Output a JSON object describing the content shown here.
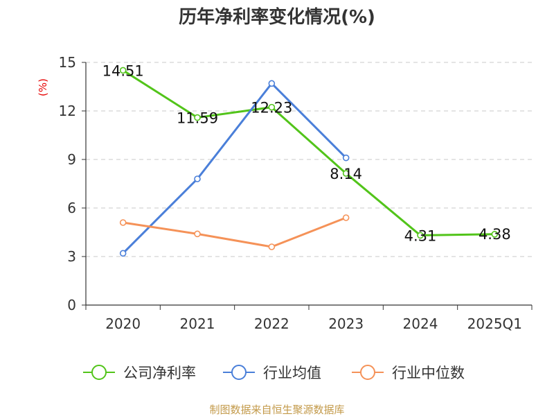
{
  "chart_data": {
    "type": "line",
    "title": "历年净利率变化情况(%)",
    "ylabel": "(%)",
    "xlabel": "",
    "categories": [
      "2020",
      "2021",
      "2022",
      "2023",
      "2024",
      "2025Q1"
    ],
    "ylim": [
      0,
      15
    ],
    "yticks": [
      "0",
      "3",
      "6",
      "9",
      "12",
      "15"
    ],
    "grid": true,
    "legend_position": "bottom",
    "series": [
      {
        "name": "公司净利率",
        "color": "#52c41a",
        "values": [
          14.51,
          11.59,
          12.23,
          8.14,
          4.31,
          4.38
        ],
        "labels": [
          "14.51",
          "11.59",
          "12.23",
          "8.14",
          "4.31",
          "4.38"
        ]
      },
      {
        "name": "行业均值",
        "color": "#4a7fd9",
        "values": [
          3.2,
          7.8,
          13.7,
          9.1,
          null,
          null
        ]
      },
      {
        "name": "行业中位数",
        "color": "#f59258",
        "values": [
          5.1,
          4.4,
          3.6,
          5.4,
          null,
          null
        ]
      }
    ]
  },
  "footer": "制图数据来自恒生聚源数据库"
}
